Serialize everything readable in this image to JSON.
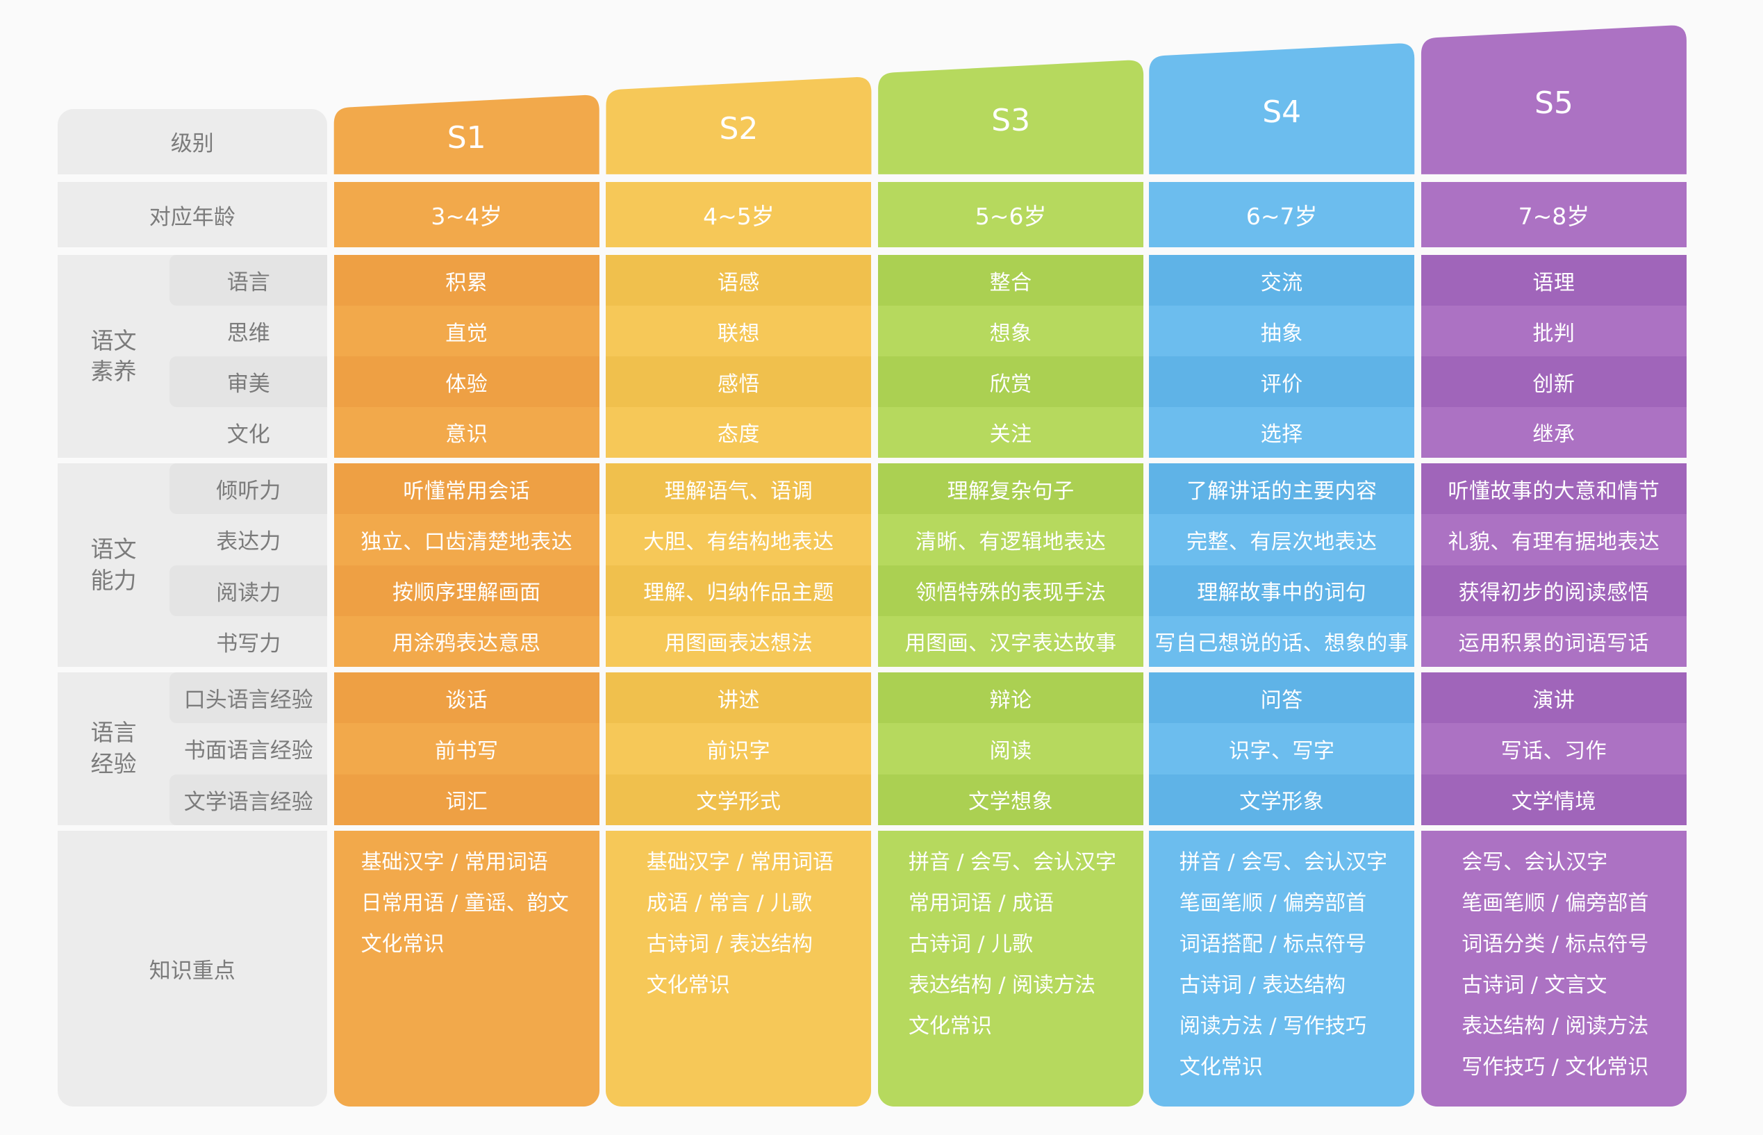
{
  "header_label": "级别",
  "age_label": "对应年龄",
  "knowledge_label": "知识重点",
  "levels": [
    {
      "name": "S1",
      "age": "3~4岁",
      "color": "#f2a94b",
      "stripe": "#eea044",
      "literacy": [
        "积累",
        "直觉",
        "体验",
        "意识"
      ],
      "ability": [
        "听懂常用会话",
        "独立、口齿清楚地表达",
        "按顺序理解画面",
        "用涂鸦表达意思"
      ],
      "experience": [
        "谈话",
        "前书写",
        "词汇"
      ],
      "knowledge": [
        "基础汉字 / 常用词语",
        "日常用语 / 童谣、韵文",
        "文化常识"
      ]
    },
    {
      "name": "S2",
      "age": "4~5岁",
      "color": "#f6c858",
      "stripe": "#f0c04d",
      "literacy": [
        "语感",
        "联想",
        "感悟",
        "态度"
      ],
      "ability": [
        "理解语气、语调",
        "大胆、有结构地表达",
        "理解、归纳作品主题",
        "用图画表达想法"
      ],
      "experience": [
        "讲述",
        "前识字",
        "文学形式"
      ],
      "knowledge": [
        "基础汉字 / 常用词语",
        "成语 / 常言 / 儿歌",
        "古诗词 / 表达结构",
        "文化常识"
      ]
    },
    {
      "name": "S3",
      "age": "5~6岁",
      "color": "#b6d95e",
      "stripe": "#abd052",
      "literacy": [
        "整合",
        "想象",
        "欣赏",
        "关注"
      ],
      "ability": [
        "理解复杂句子",
        "清晰、有逻辑地表达",
        "领悟特殊的表现手法",
        "用图画、汉字表达故事"
      ],
      "experience": [
        "辩论",
        "阅读",
        "文学想象"
      ],
      "knowledge": [
        "拼音 / 会写、会认汉字",
        "常用词语 / 成语",
        "古诗词 / 儿歌",
        "表达结构 / 阅读方法",
        "文化常识"
      ]
    },
    {
      "name": "S4",
      "age": "6~7岁",
      "color": "#6cbdee",
      "stripe": "#5fb3e7",
      "literacy": [
        "交流",
        "抽象",
        "评价",
        "选择"
      ],
      "ability": [
        "了解讲话的主要内容",
        "完整、有层次地表达",
        "理解故事中的词句",
        "写自己想说的话、想象的事"
      ],
      "experience": [
        "问答",
        "识字、写字",
        "文学形象"
      ],
      "knowledge": [
        "拼音 / 会写、会认汉字",
        "笔画笔顺 / 偏旁部首",
        "词语搭配 / 标点符号",
        "古诗词 / 表达结构",
        "阅读方法 / 写作技巧",
        "文化常识"
      ]
    },
    {
      "name": "S5",
      "age": "7~8岁",
      "color": "#ac72c3",
      "stripe": "#a065ba",
      "literacy": [
        "语理",
        "批判",
        "创新",
        "继承"
      ],
      "ability": [
        "听懂故事的大意和情节",
        "礼貌、有理有据地表达",
        "获得初步的阅读感悟",
        "运用积累的词语写话"
      ],
      "experience": [
        "演讲",
        "写话、习作",
        "文学情境"
      ],
      "knowledge": [
        "会写、会认汉字",
        "笔画笔顺 / 偏旁部首",
        "词语分类 / 标点符号",
        "古诗词 / 文言文",
        "表达结构 / 阅读方法",
        "写作技巧 / 文化常识"
      ]
    }
  ],
  "groups": [
    {
      "key": "literacy",
      "label": "语文\n素养",
      "sublabels": [
        "语言",
        "思维",
        "审美",
        "文化"
      ]
    },
    {
      "key": "ability",
      "label": "语文\n能力",
      "sublabels": [
        "倾听力",
        "表达力",
        "阅读力",
        "书写力"
      ]
    },
    {
      "key": "experience",
      "label": "语言\n经验",
      "sublabels": [
        "口头语言经验",
        "书面语言经验",
        "文学语言经验"
      ]
    }
  ]
}
